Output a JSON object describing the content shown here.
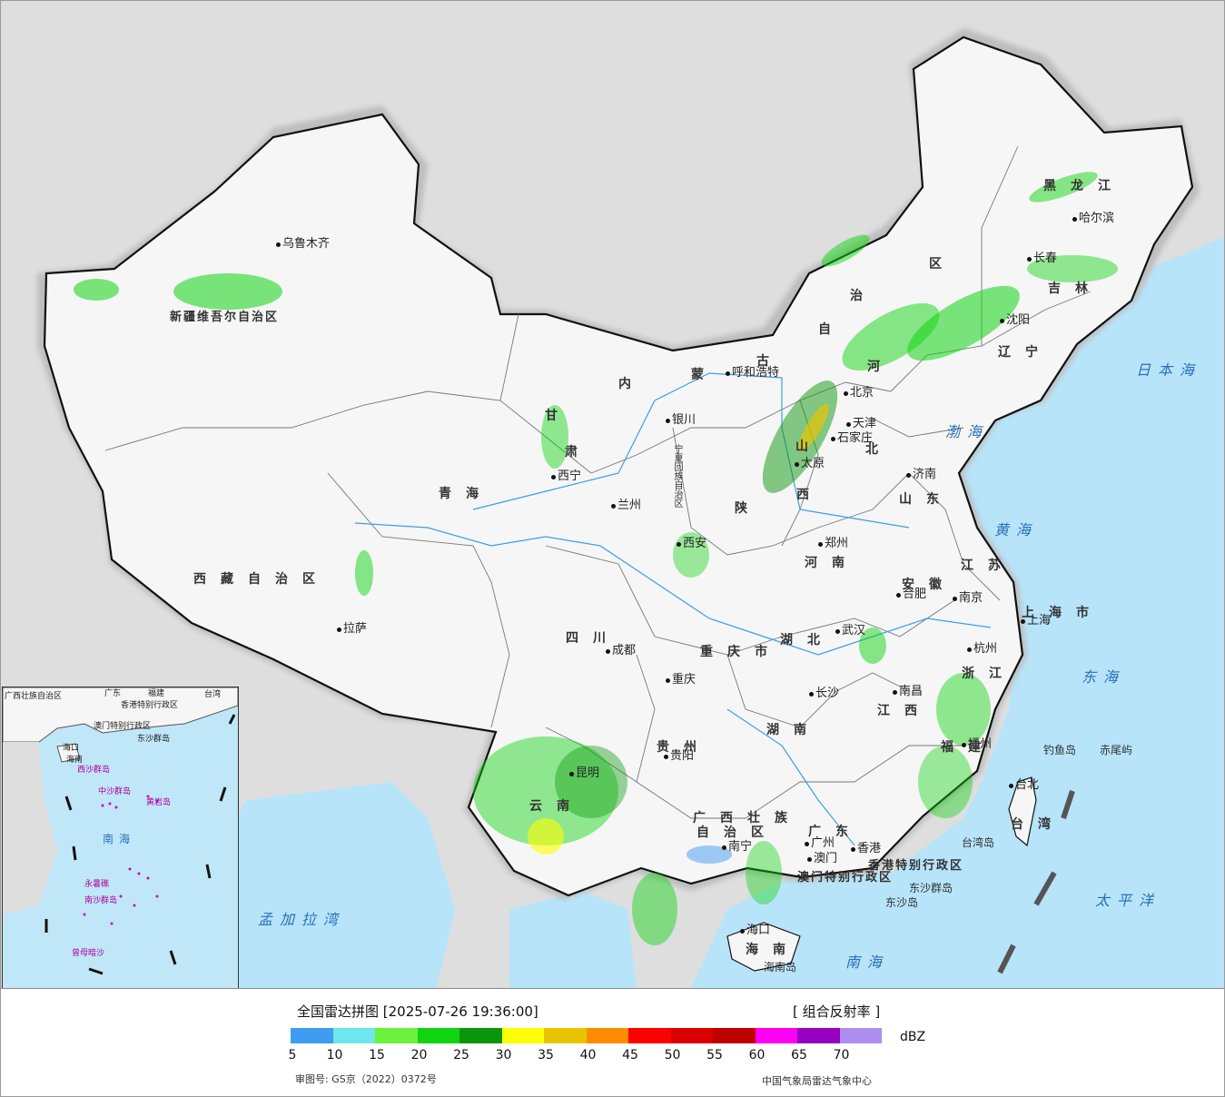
{
  "legend": {
    "title": "全国雷达拼图 [2025-07-26 19:36:00]",
    "product": "[ 组合反射率 ]",
    "unit": "dBZ",
    "review_number": "审图号: GS京（2022）0372号",
    "issuer": "中国气象局雷达气象中心",
    "colors": [
      "#3f9cf0",
      "#6de6ec",
      "#6cf23c",
      "#10d410",
      "#0b950b",
      "#ffff00",
      "#e9c400",
      "#ff8c00",
      "#ff0000",
      "#d80000",
      "#bf0000",
      "#ff00f5",
      "#9800c0",
      "#ad8ef0"
    ],
    "ticks": [
      "5",
      "10",
      "15",
      "20",
      "25",
      "30",
      "35",
      "40",
      "45",
      "50",
      "55",
      "60",
      "65",
      "70"
    ]
  },
  "map": {
    "colors": {
      "sea": "#b7e4f9",
      "land": "#f6f6f6",
      "foreign": "#dedede",
      "border": "#111111",
      "river": "#3aa0e6"
    },
    "cities": [
      {
        "name": "乌鲁木齐"
      },
      {
        "name": "拉萨"
      },
      {
        "name": "西宁"
      },
      {
        "name": "兰州"
      },
      {
        "name": "银川"
      },
      {
        "name": "呼和浩特"
      },
      {
        "name": "北京"
      },
      {
        "name": "天津"
      },
      {
        "name": "石家庄"
      },
      {
        "name": "太原"
      },
      {
        "name": "济南"
      },
      {
        "name": "郑州"
      },
      {
        "name": "西安"
      },
      {
        "name": "成都"
      },
      {
        "name": "重庆"
      },
      {
        "name": "武汉"
      },
      {
        "name": "合肥"
      },
      {
        "name": "南京"
      },
      {
        "name": "上海"
      },
      {
        "name": "杭州"
      },
      {
        "name": "南昌"
      },
      {
        "name": "长沙"
      },
      {
        "name": "贵阳"
      },
      {
        "name": "昆明"
      },
      {
        "name": "南宁"
      },
      {
        "name": "广州"
      },
      {
        "name": "澳门"
      },
      {
        "name": "香港"
      },
      {
        "name": "福州"
      },
      {
        "name": "台北"
      },
      {
        "name": "海口"
      },
      {
        "name": "沈阳"
      },
      {
        "name": "长春"
      },
      {
        "name": "哈尔滨"
      }
    ],
    "regions": [
      {
        "name": "新疆维吾尔自治区"
      },
      {
        "name": "西藏自治区"
      },
      {
        "name": "青海"
      },
      {
        "name": "甘"
      },
      {
        "name": "肃"
      },
      {
        "name": "内"
      },
      {
        "name": "蒙"
      },
      {
        "name": "古"
      },
      {
        "name": "自"
      },
      {
        "name": "治"
      },
      {
        "name": "区"
      },
      {
        "name": "黑龙江"
      },
      {
        "name": "吉林"
      },
      {
        "name": "辽宁"
      },
      {
        "name": "河"
      },
      {
        "name": "北"
      },
      {
        "name": "山"
      },
      {
        "name": "西"
      },
      {
        "name": "山东"
      },
      {
        "name": "河南"
      },
      {
        "name": "陕"
      },
      {
        "name": "四川"
      },
      {
        "name": "重庆市"
      },
      {
        "name": "湖北"
      },
      {
        "name": "湖南"
      },
      {
        "name": "贵州"
      },
      {
        "name": "云南"
      },
      {
        "name": "广西壮族"
      },
      {
        "name": "自治区"
      },
      {
        "name": "广东"
      },
      {
        "name": "江西"
      },
      {
        "name": "福建"
      },
      {
        "name": "浙江"
      },
      {
        "name": "安徽"
      },
      {
        "name": "江苏"
      },
      {
        "name": "上海市"
      },
      {
        "name": "台湾"
      },
      {
        "name": "海南"
      },
      {
        "name": "宁夏回族自治区"
      },
      {
        "name": "香港特别行政区"
      },
      {
        "name": "澳门特别行政区"
      }
    ],
    "seas": [
      {
        "name": "日本海"
      },
      {
        "name": "渤海"
      },
      {
        "name": "黄海"
      },
      {
        "name": "东海"
      },
      {
        "name": "太平洋"
      },
      {
        "name": "南海"
      },
      {
        "name": "孟加拉湾"
      }
    ],
    "islands": [
      {
        "name": "钓鱼岛"
      },
      {
        "name": "赤尾屿"
      },
      {
        "name": "台湾岛"
      },
      {
        "name": "东沙群岛"
      },
      {
        "name": "东沙岛"
      },
      {
        "name": "海南岛"
      }
    ],
    "inset_labels": [
      {
        "name": "广西壮族自治区"
      },
      {
        "name": "广东"
      },
      {
        "name": "福建"
      },
      {
        "name": "台湾"
      },
      {
        "name": "香港特别行政区"
      },
      {
        "name": "澳门特别行政区"
      },
      {
        "name": "东沙群岛"
      },
      {
        "name": "海口"
      },
      {
        "name": "海南"
      },
      {
        "name": "西沙群岛"
      },
      {
        "name": "中沙群岛"
      },
      {
        "name": "黄岩岛"
      },
      {
        "name": "南海"
      },
      {
        "name": "永暑礁"
      },
      {
        "name": "南沙群岛"
      },
      {
        "name": "曾母暗沙"
      }
    ]
  }
}
